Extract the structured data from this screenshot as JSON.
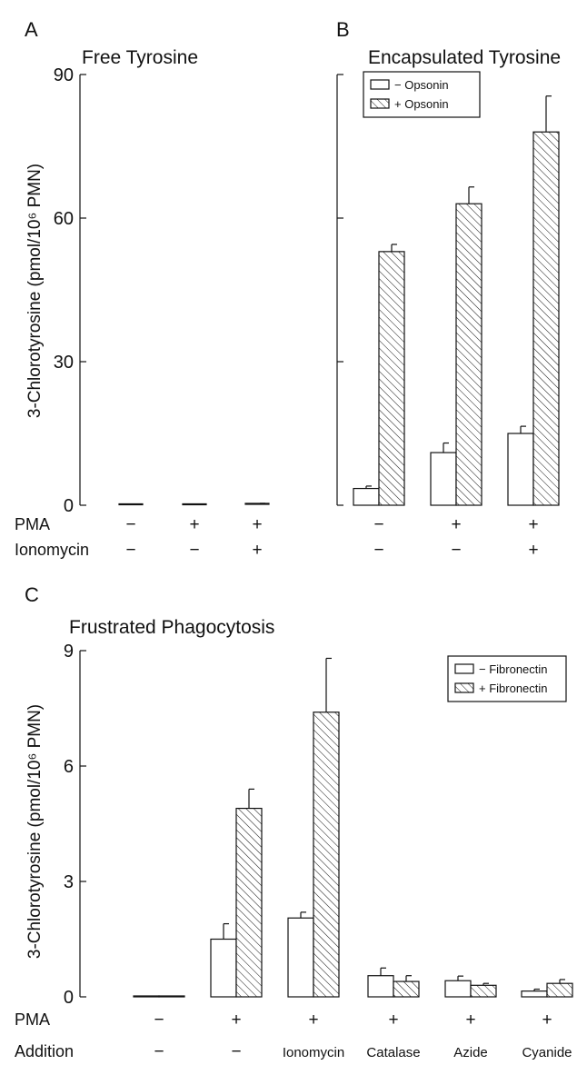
{
  "chart_data": [
    {
      "panel": "A",
      "type": "bar",
      "title": "Free Tyrosine",
      "ylabel": "3-Chlorotyrosine (pmol/10⁶ PMN)",
      "ylim": [
        0,
        90
      ],
      "yticks": [
        "0",
        "30",
        "60",
        "90"
      ],
      "condition_rows": [
        {
          "label": "PMA",
          "values": [
            "−",
            "+",
            "+"
          ]
        },
        {
          "label": "Ionomycin",
          "values": [
            "−",
            "−",
            "+"
          ]
        }
      ],
      "series": [
        {
          "values": [
            0.1,
            0.1,
            0.2
          ],
          "errors": [
            0,
            0,
            0.2
          ]
        }
      ]
    },
    {
      "panel": "B",
      "type": "bar",
      "title": "Encapsulated Tyrosine",
      "ylim": [
        0,
        90
      ],
      "condition_rows": [
        {
          "label": "PMA",
          "values": [
            "−",
            "+",
            "+"
          ]
        },
        {
          "label": "Ionomycin",
          "values": [
            "−",
            "−",
            "+"
          ]
        }
      ],
      "legend": "top-left",
      "series": [
        {
          "name": "− Opsonin",
          "values": [
            3.5,
            11,
            15
          ],
          "errors": [
            0.5,
            2,
            1.5
          ]
        },
        {
          "name": "+ Opsonin",
          "values": [
            53,
            63,
            78
          ],
          "errors": [
            1.5,
            3.5,
            7.5
          ]
        }
      ]
    },
    {
      "panel": "C",
      "type": "bar",
      "title": "Frustrated Phagocytosis",
      "ylabel": "3-Chlorotyrosine (pmol/10⁶ PMN)",
      "ylim": [
        0,
        9
      ],
      "yticks": [
        "0",
        "3",
        "6",
        "9"
      ],
      "condition_rows": [
        {
          "label": "PMA",
          "values": [
            "−",
            "+",
            "+",
            "+",
            "+",
            "+"
          ]
        },
        {
          "label": "Addition",
          "values": [
            "−",
            "−",
            "Ionomycin",
            "Catalase",
            "Azide",
            "Cyanide"
          ]
        }
      ],
      "legend": "top-right",
      "series": [
        {
          "name": "− Fibronectin",
          "values": [
            0,
            1.5,
            2.05,
            0.55,
            0.42,
            0.15
          ],
          "errors": [
            0,
            0.4,
            0.15,
            0.2,
            0.12,
            0.05
          ]
        },
        {
          "name": "+ Fibronectin",
          "values": [
            0,
            4.9,
            7.4,
            0.4,
            0.3,
            0.35
          ],
          "errors": [
            0,
            0.5,
            1.4,
            0.15,
            0.05,
            0.1
          ]
        }
      ]
    }
  ]
}
